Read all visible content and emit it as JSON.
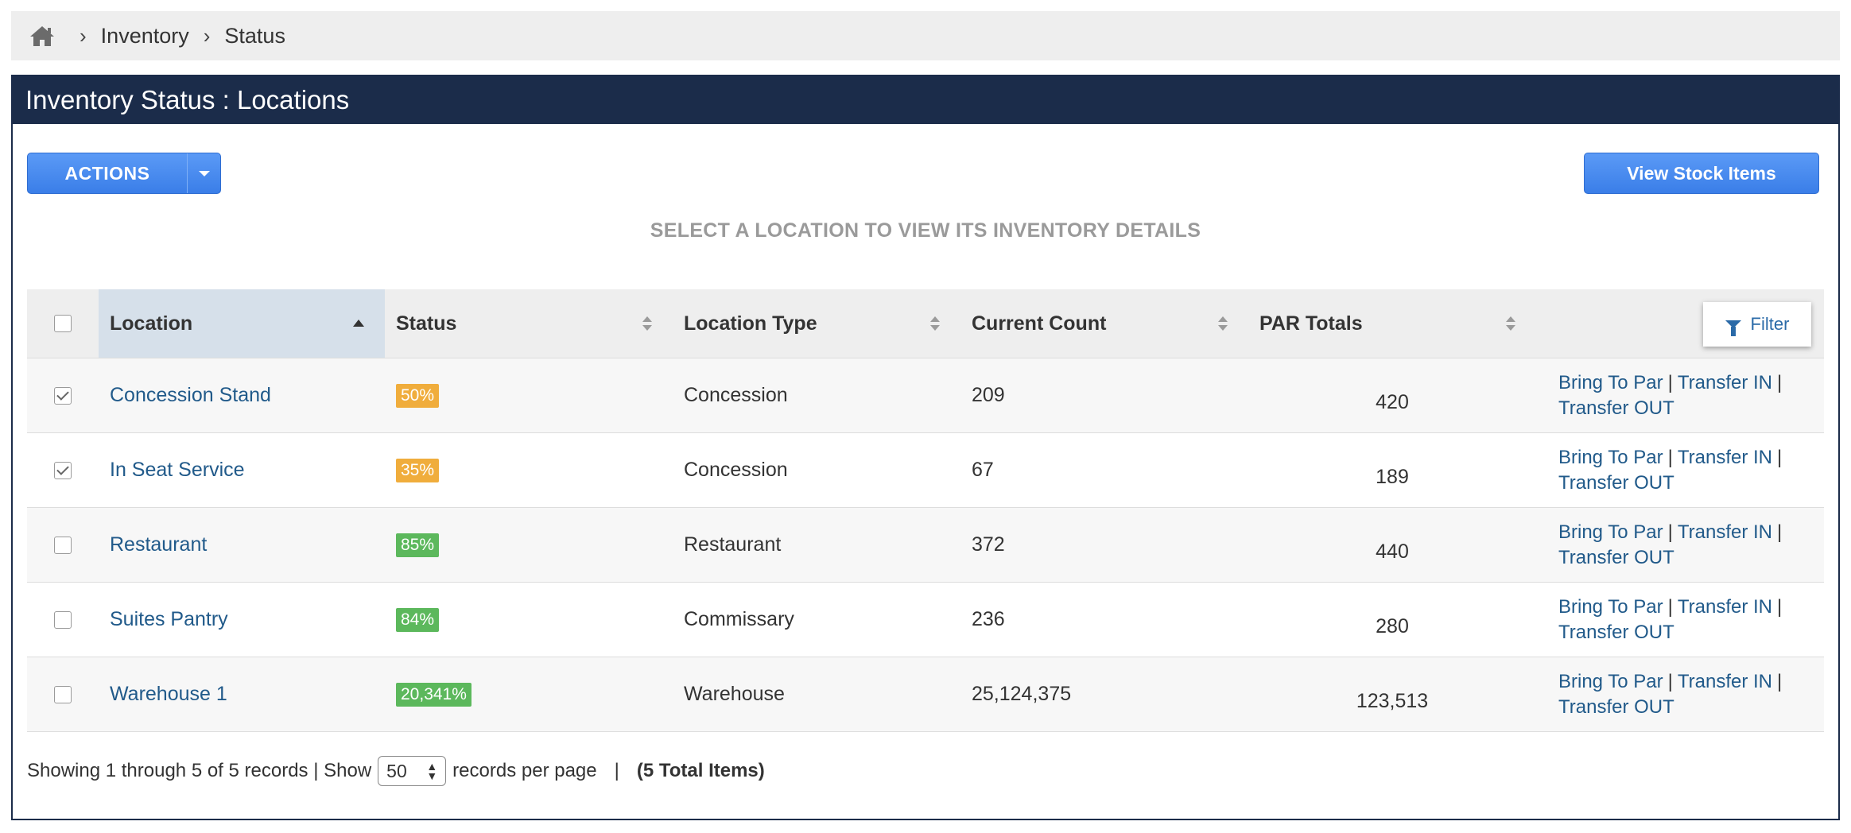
{
  "breadcrumb": {
    "home_icon": "home-icon",
    "items": [
      "Inventory",
      "Status"
    ]
  },
  "panel": {
    "title": "Inventory Status : Locations",
    "actions_label": "ACTIONS",
    "view_stock_label": "View Stock Items",
    "hint": "SELECT A LOCATION TO VIEW ITS INVENTORY DETAILS"
  },
  "table": {
    "columns": {
      "location": "Location",
      "status": "Status",
      "location_type": "Location Type",
      "current_count": "Current Count",
      "par_totals": "PAR Totals"
    },
    "filter_label": "Filter",
    "link_labels": {
      "bring_to_par": "Bring To Par",
      "transfer_in": "Transfer IN",
      "transfer_out": "Transfer OUT",
      "separator": "|"
    },
    "rows": [
      {
        "checked": true,
        "location": "Concession Stand",
        "status": "50%",
        "status_level": "warn",
        "type": "Concession",
        "count": "209",
        "par": "420"
      },
      {
        "checked": true,
        "location": "In Seat Service",
        "status": "35%",
        "status_level": "warn",
        "type": "Concession",
        "count": "67",
        "par": "189"
      },
      {
        "checked": false,
        "location": "Restaurant",
        "status": "85%",
        "status_level": "ok",
        "type": "Restaurant",
        "count": "372",
        "par": "440"
      },
      {
        "checked": false,
        "location": "Suites Pantry",
        "status": "84%",
        "status_level": "ok",
        "type": "Commissary",
        "count": "236",
        "par": "280"
      },
      {
        "checked": false,
        "location": "Warehouse 1",
        "status": "20,341%",
        "status_level": "ok",
        "type": "Warehouse",
        "count": "25,124,375",
        "par": "123,513"
      }
    ]
  },
  "footer": {
    "showing": "Showing 1 through 5 of 5 records | Show",
    "per_page_value": "50",
    "per_page_suffix": "records per page",
    "separator": "|",
    "total": "(5 Total Items)"
  },
  "colors": {
    "header_navy": "#1b2c4a",
    "button_blue": "#3a7ee8",
    "link_blue": "#215a8a",
    "badge_orange": "#f0ad3c",
    "badge_green": "#5cb85c"
  }
}
